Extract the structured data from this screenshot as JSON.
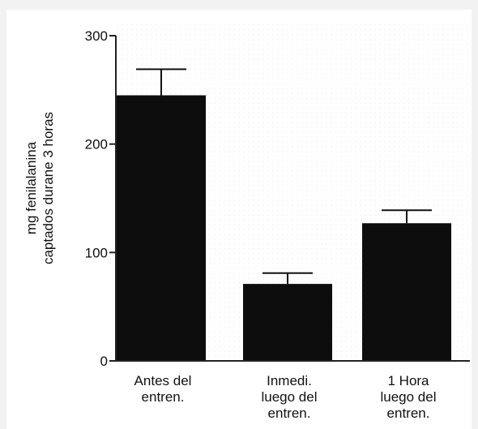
{
  "chart_data": {
    "type": "bar",
    "categories": [
      [
        "Antes del",
        "entren."
      ],
      [
        "Inmedi.",
        "luego del",
        "entren."
      ],
      [
        "1 Hora",
        "luego del",
        "entren."
      ]
    ],
    "values": [
      245,
      71,
      127
    ],
    "error_upper": [
      269,
      81,
      139
    ],
    "ylabel": [
      "mg  fenilalanina",
      "captados durane 3 horas"
    ],
    "ylim": [
      0,
      300
    ],
    "yticks": [
      "0",
      "100",
      "200",
      "300"
    ],
    "grid": false,
    "colors": {
      "bar": "#0d0d0d",
      "axis": "#222222",
      "error": "#111111"
    }
  }
}
